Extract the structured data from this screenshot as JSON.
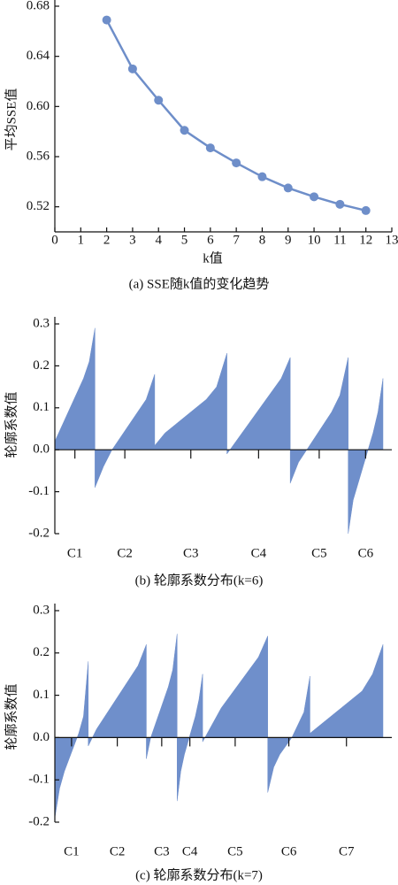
{
  "chart_data": [
    {
      "type": "line",
      "title": "(a) SSE随k值的变化趋势",
      "x_label": "k值",
      "y_label": "平均SSE值",
      "x": [
        2,
        3,
        4,
        5,
        6,
        7,
        8,
        9,
        10,
        11,
        12
      ],
      "values": [
        0.669,
        0.63,
        0.605,
        0.581,
        0.567,
        0.555,
        0.544,
        0.535,
        0.528,
        0.522,
        0.517
      ],
      "color": "#6e8ec9",
      "xlim": [
        0,
        13
      ],
      "xticks": [
        0,
        1,
        2,
        3,
        4,
        5,
        6,
        7,
        8,
        9,
        10,
        11,
        12,
        13
      ],
      "ylim": [
        0.5,
        0.68
      ],
      "yticks": [
        0.52,
        0.56,
        {
          "value": 0.6,
          "label": "0.60"
        },
        0.64,
        0.68
      ]
    },
    {
      "type": "silhouette",
      "title": "(b) 轮廓系数分布(k=6)",
      "y_label": "轮廓系数值",
      "categories": [
        "C1",
        "C2",
        "C3",
        "C4",
        "C5",
        "C6"
      ],
      "sizes": [
        45,
        67,
        81,
        71,
        65,
        39
      ],
      "values": [
        [
          0.02,
          0.05,
          0.08,
          0.11,
          0.14,
          0.17,
          0.21,
          0.29
        ],
        [
          -0.09,
          -0.04,
          0.0,
          0.03,
          0.06,
          0.09,
          0.12,
          0.18
        ],
        [
          0.01,
          0.04,
          0.06,
          0.08,
          0.1,
          0.12,
          0.15,
          0.23
        ],
        [
          -0.01,
          0.02,
          0.05,
          0.08,
          0.11,
          0.14,
          0.17,
          0.22
        ],
        [
          -0.08,
          -0.03,
          0.0,
          0.03,
          0.06,
          0.09,
          0.13,
          0.22
        ],
        [
          -0.2,
          -0.12,
          -0.08,
          -0.04,
          0.0,
          0.04,
          0.09,
          0.17
        ]
      ],
      "color": "#6f8fcb",
      "ylim": [
        -0.2,
        0.3
      ],
      "yticks": [
        -0.2,
        -0.1,
        {
          "value": 0,
          "label": "0.0"
        },
        0.1,
        0.2,
        0.3
      ]
    },
    {
      "type": "silhouette",
      "title": "(c) 轮廓系数分布(k=7)",
      "y_label": "轮廓系数值",
      "categories": [
        "C1",
        "C2",
        "C3",
        "C4",
        "C5",
        "C6",
        "C7"
      ],
      "sizes": [
        38,
        66,
        35,
        29,
        74,
        48,
        83
      ],
      "values": [
        [
          -0.19,
          -0.12,
          -0.08,
          -0.05,
          -0.02,
          0.01,
          0.05,
          0.18
        ],
        [
          -0.02,
          0.02,
          0.05,
          0.08,
          0.11,
          0.14,
          0.17,
          0.22
        ],
        [
          -0.05,
          0.0,
          0.03,
          0.06,
          0.09,
          0.12,
          0.16,
          0.245
        ],
        [
          -0.15,
          -0.08,
          -0.04,
          -0.01,
          0.02,
          0.05,
          0.09,
          0.15
        ],
        [
          -0.01,
          0.03,
          0.07,
          0.1,
          0.13,
          0.16,
          0.19,
          0.24
        ],
        [
          -0.13,
          -0.07,
          -0.04,
          -0.02,
          0.0,
          0.03,
          0.06,
          0.145
        ],
        [
          0.01,
          0.03,
          0.05,
          0.07,
          0.09,
          0.11,
          0.15,
          0.22
        ]
      ],
      "color": "#6f8fcb",
      "ylim": [
        -0.2,
        0.3
      ],
      "yticks": [
        -0.2,
        -0.1,
        {
          "value": 0,
          "label": "0.0"
        },
        0.1,
        0.2,
        0.3
      ]
    }
  ]
}
